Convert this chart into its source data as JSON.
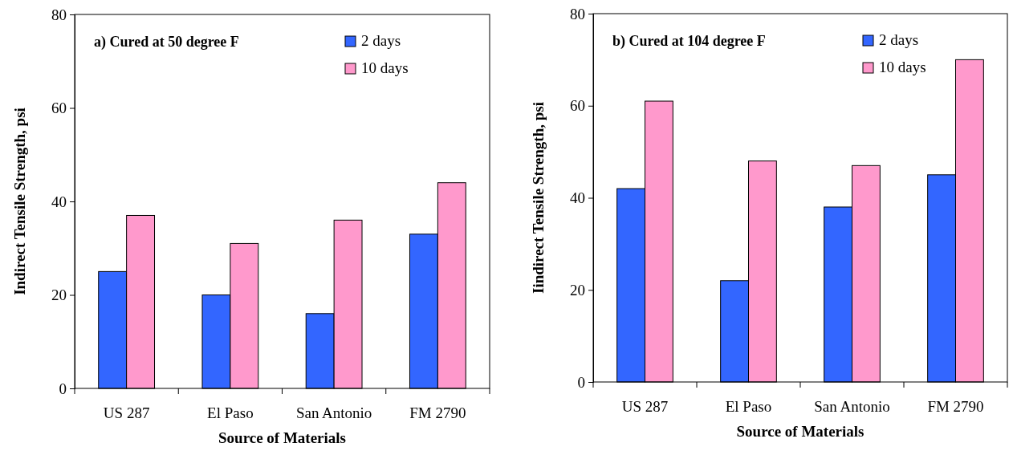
{
  "chart_data": [
    {
      "type": "bar",
      "title": "a) Cured at 50 degree F",
      "xlabel": "Source of Materials",
      "ylabel": "Indirect Tensile Strength, psi",
      "categories": [
        "US 287",
        "El Paso",
        "San Antonio",
        "FM 2790"
      ],
      "series": [
        {
          "name": "2 days",
          "color": "#3366ff",
          "values": [
            25,
            20,
            16,
            33
          ]
        },
        {
          "name": "10 days",
          "color": "#ff99cc",
          "values": [
            37,
            31,
            36,
            44
          ]
        }
      ],
      "ylim": [
        0,
        80
      ],
      "yticks": [
        0,
        20,
        40,
        60,
        80
      ],
      "grid": false,
      "legend": "top right"
    },
    {
      "type": "bar",
      "title": "b) Cured at 104 degree F",
      "xlabel": "Source of Materials",
      "ylabel": "Iindirect Tensile Strength, psi",
      "categories": [
        "US 287",
        "El Paso",
        "San Antonio",
        "FM 2790"
      ],
      "series": [
        {
          "name": "2 days",
          "color": "#3366ff",
          "values": [
            42,
            22,
            38,
            45
          ]
        },
        {
          "name": "10 days",
          "color": "#ff99cc",
          "values": [
            61,
            48,
            47,
            70
          ]
        }
      ],
      "ylim": [
        0,
        80
      ],
      "yticks": [
        0,
        20,
        40,
        60,
        80
      ],
      "grid": false,
      "legend": "top right"
    }
  ]
}
